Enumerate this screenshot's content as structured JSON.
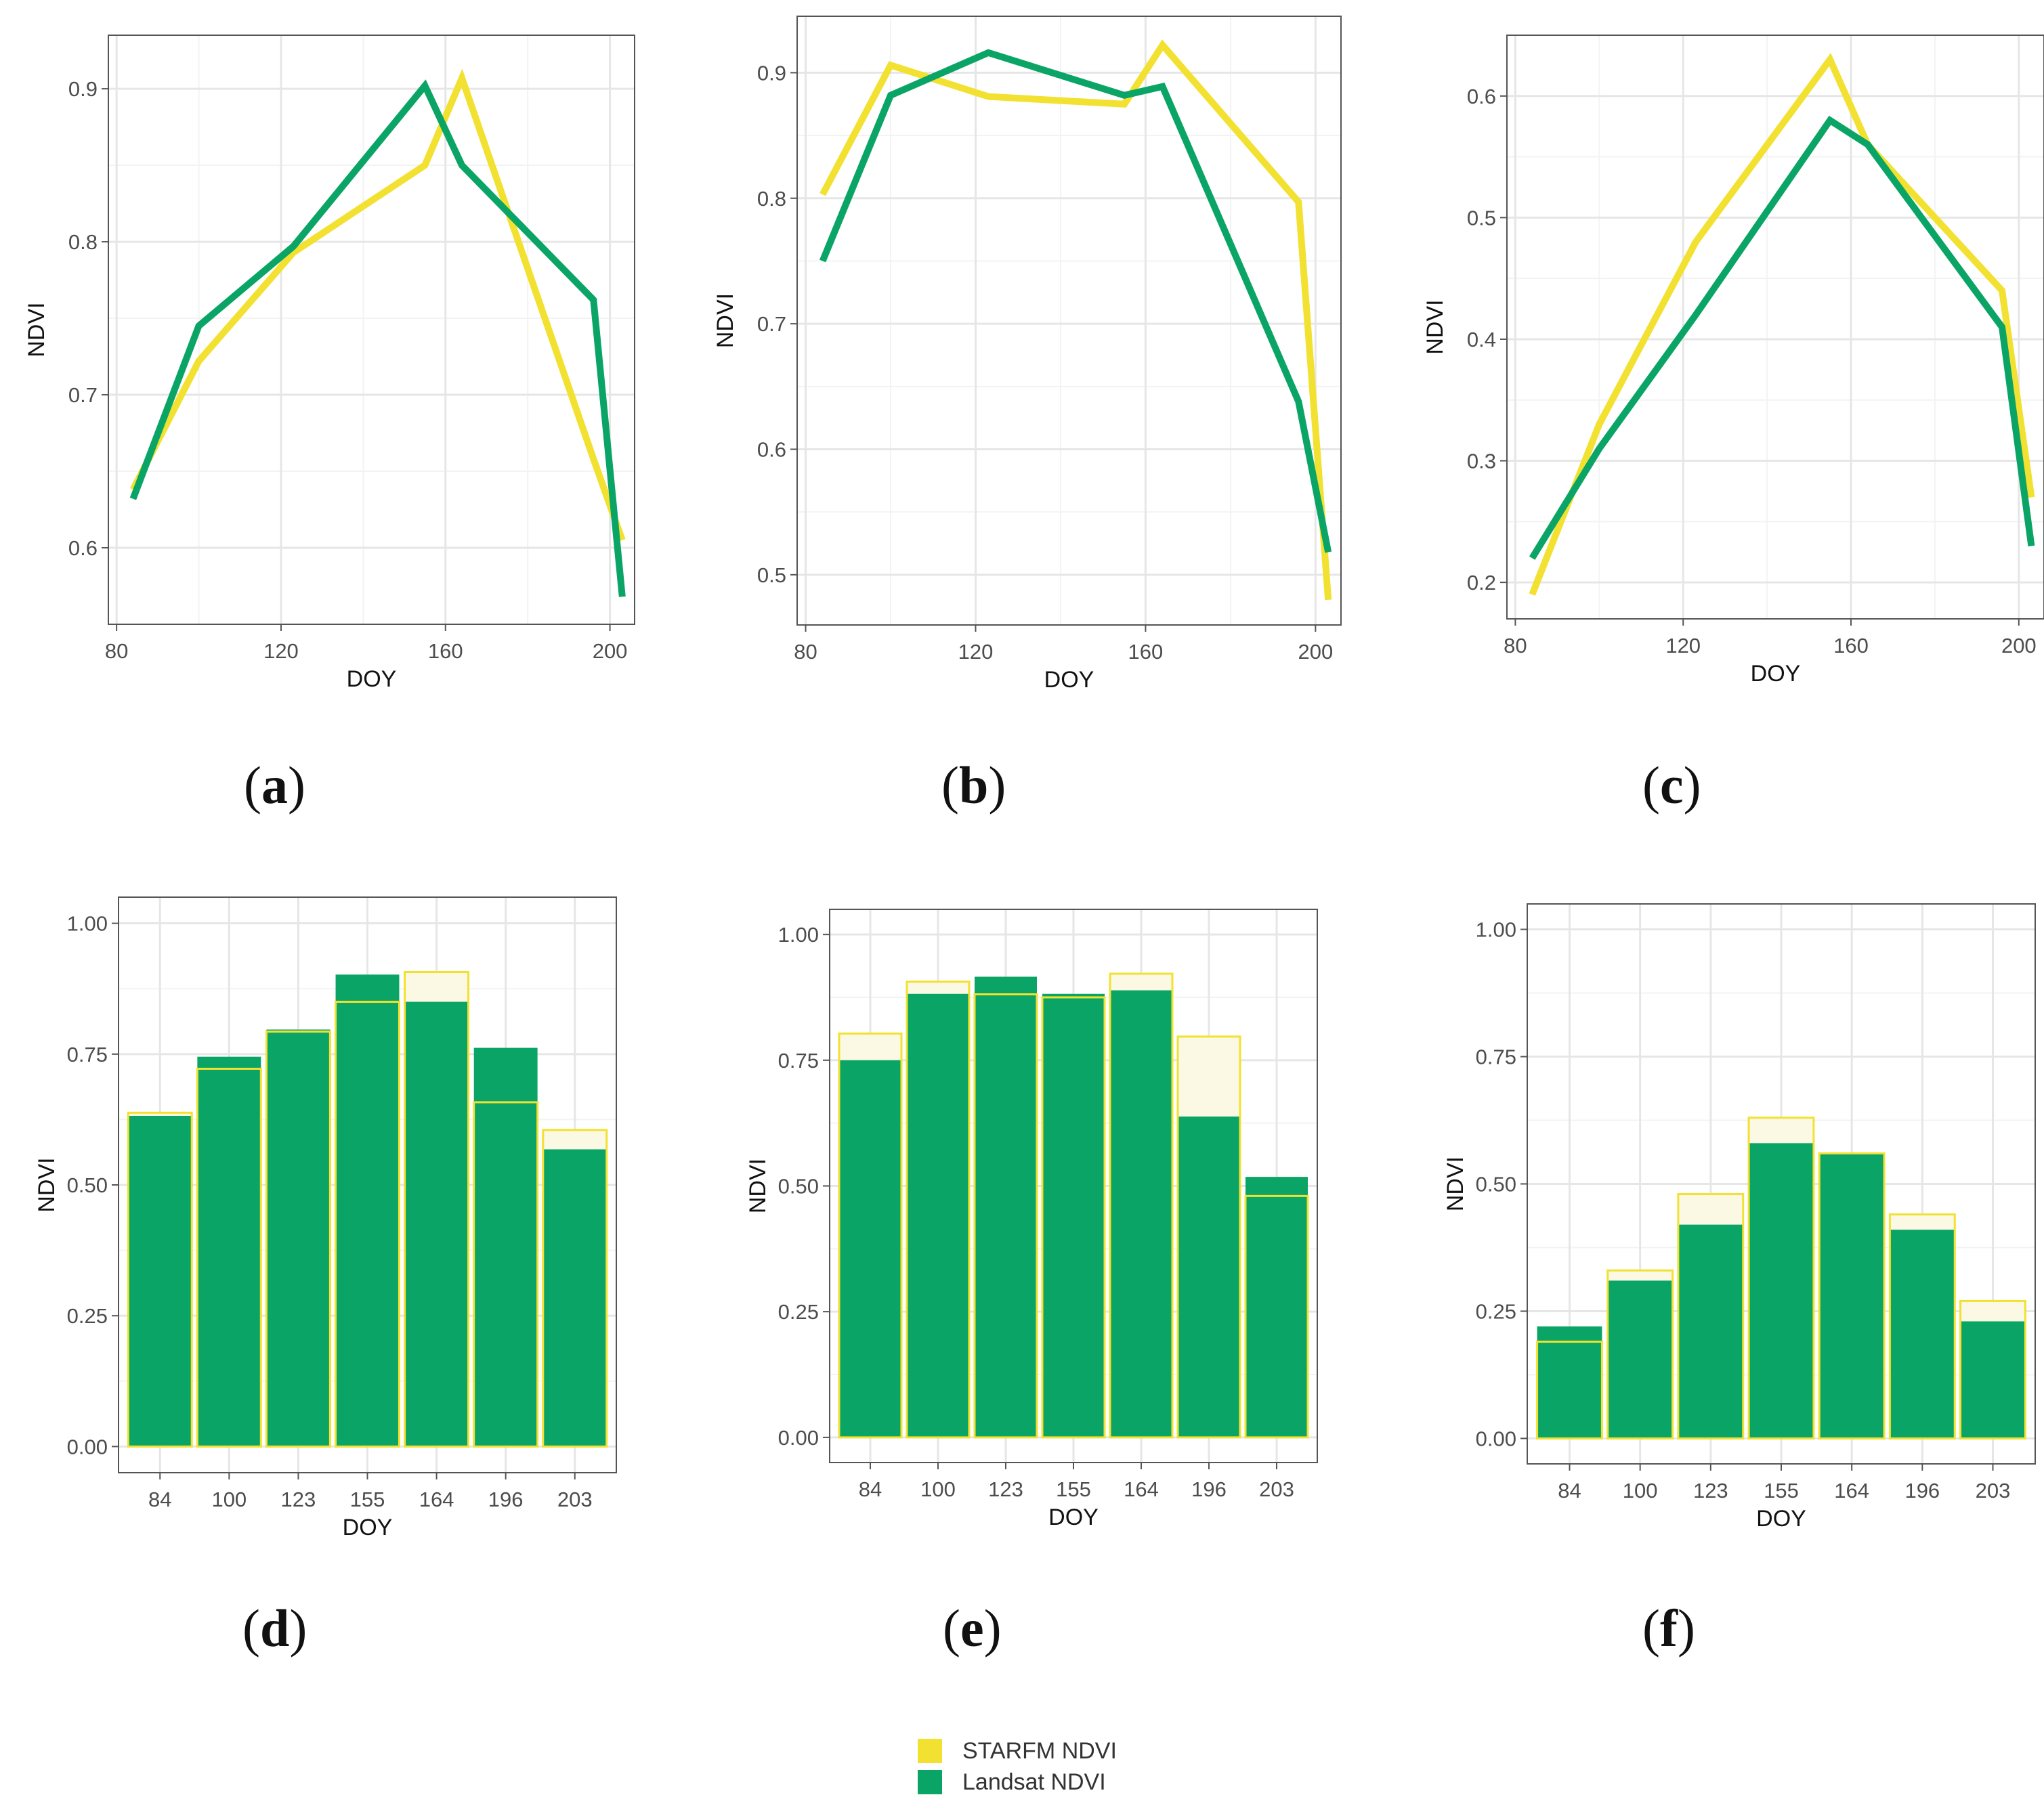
{
  "legend": {
    "starfm": {
      "label": "STARFM NDVI",
      "color": "#f2e130"
    },
    "landsat": {
      "label": "Landsat NDVI",
      "color": "#0aa566"
    }
  },
  "panel_labels": [
    {
      "text": "a"
    },
    {
      "text": "b"
    },
    {
      "text": "c"
    },
    {
      "text": "d"
    },
    {
      "text": "e"
    },
    {
      "text": "f"
    }
  ],
  "chart_data": [
    {
      "id": "a",
      "type": "line",
      "xlabel": "DOY",
      "ylabel": "NDVI",
      "xlim": [
        78,
        206
      ],
      "ylim": [
        0.55,
        0.935
      ],
      "xticks": [
        "80",
        "120",
        "160",
        "200"
      ],
      "xtick_values": [
        80,
        120,
        160,
        200
      ],
      "yticks": [
        "0.6",
        "0.7",
        "0.8",
        "0.9"
      ],
      "ytick_values": [
        0.6,
        0.7,
        0.8,
        0.9
      ],
      "series": [
        {
          "name": "Landsat NDVI",
          "x": [
            84,
            100,
            123,
            155,
            164,
            196,
            203
          ],
          "values": [
            0.632,
            0.745,
            0.797,
            0.902,
            0.85,
            0.762,
            0.568
          ]
        },
        {
          "name": "STARFM NDVI",
          "x": [
            84,
            100,
            123,
            155,
            164,
            196,
            203
          ],
          "values": [
            0.638,
            0.722,
            0.793,
            0.85,
            0.907,
            0.658,
            0.605
          ]
        }
      ]
    },
    {
      "id": "b",
      "type": "line",
      "xlabel": "DOY",
      "ylabel": "NDVI",
      "xlim": [
        78,
        206
      ],
      "ylim": [
        0.46,
        0.945
      ],
      "xticks": [
        "80",
        "120",
        "160",
        "200"
      ],
      "xtick_values": [
        80,
        120,
        160,
        200
      ],
      "yticks": [
        "0.5",
        "0.6",
        "0.7",
        "0.8",
        "0.9"
      ],
      "ytick_values": [
        0.5,
        0.6,
        0.7,
        0.8,
        0.9
      ],
      "series": [
        {
          "name": "Landsat NDVI",
          "x": [
            84,
            100,
            123,
            155,
            164,
            196,
            203
          ],
          "values": [
            0.75,
            0.882,
            0.916,
            0.882,
            0.889,
            0.638,
            0.518
          ]
        },
        {
          "name": "STARFM NDVI",
          "x": [
            84,
            100,
            123,
            155,
            164,
            196,
            203
          ],
          "values": [
            0.803,
            0.906,
            0.881,
            0.875,
            0.922,
            0.797,
            0.48
          ]
        }
      ]
    },
    {
      "id": "c",
      "type": "line",
      "xlabel": "DOY",
      "ylabel": "NDVI",
      "xlim": [
        78,
        206
      ],
      "ylim": [
        0.17,
        0.65
      ],
      "xticks": [
        "80",
        "120",
        "160",
        "200"
      ],
      "xtick_values": [
        80,
        120,
        160,
        200
      ],
      "yticks": [
        "0.2",
        "0.3",
        "0.4",
        "0.5",
        "0.6"
      ],
      "ytick_values": [
        0.2,
        0.3,
        0.4,
        0.5,
        0.6
      ],
      "series": [
        {
          "name": "Landsat NDVI",
          "x": [
            84,
            100,
            123,
            155,
            164,
            196,
            203
          ],
          "values": [
            0.22,
            0.31,
            0.42,
            0.58,
            0.56,
            0.41,
            0.23
          ]
        },
        {
          "name": "STARFM NDVI",
          "x": [
            84,
            100,
            123,
            155,
            164,
            196,
            203
          ],
          "values": [
            0.19,
            0.33,
            0.48,
            0.63,
            0.56,
            0.44,
            0.27
          ]
        }
      ]
    },
    {
      "id": "d",
      "type": "bar",
      "xlabel": "DOY",
      "ylabel": "NDVI",
      "categories": [
        "84",
        "100",
        "123",
        "155",
        "164",
        "196",
        "203"
      ],
      "ylim": [
        -0.05,
        1.05
      ],
      "yticks": [
        "0.00",
        "0.25",
        "0.50",
        "0.75",
        "1.00"
      ],
      "ytick_values": [
        0,
        0.25,
        0.5,
        0.75,
        1.0
      ],
      "series": [
        {
          "name": "Landsat NDVI",
          "values": [
            0.632,
            0.745,
            0.797,
            0.902,
            0.85,
            0.762,
            0.568
          ]
        },
        {
          "name": "STARFM NDVI",
          "values": [
            0.638,
            0.722,
            0.793,
            0.85,
            0.907,
            0.658,
            0.605
          ]
        }
      ]
    },
    {
      "id": "e",
      "type": "bar",
      "xlabel": "DOY",
      "ylabel": "NDVI",
      "categories": [
        "84",
        "100",
        "123",
        "155",
        "164",
        "196",
        "203"
      ],
      "ylim": [
        -0.05,
        1.05
      ],
      "yticks": [
        "0.00",
        "0.25",
        "0.50",
        "0.75",
        "1.00"
      ],
      "ytick_values": [
        0,
        0.25,
        0.5,
        0.75,
        1.0
      ],
      "series": [
        {
          "name": "Landsat NDVI",
          "values": [
            0.75,
            0.882,
            0.916,
            0.882,
            0.889,
            0.638,
            0.518
          ]
        },
        {
          "name": "STARFM NDVI",
          "values": [
            0.803,
            0.906,
            0.881,
            0.875,
            0.922,
            0.797,
            0.48
          ]
        }
      ]
    },
    {
      "id": "f",
      "type": "bar",
      "xlabel": "DOY",
      "ylabel": "NDVI",
      "categories": [
        "84",
        "100",
        "123",
        "155",
        "164",
        "196",
        "203"
      ],
      "ylim": [
        -0.05,
        1.05
      ],
      "yticks": [
        "0.00",
        "0.25",
        "0.50",
        "0.75",
        "1.00"
      ],
      "ytick_values": [
        0,
        0.25,
        0.5,
        0.75,
        1.0
      ],
      "series": [
        {
          "name": "Landsat NDVI",
          "values": [
            0.22,
            0.31,
            0.42,
            0.58,
            0.56,
            0.41,
            0.23
          ]
        },
        {
          "name": "STARFM NDVI",
          "values": [
            0.19,
            0.33,
            0.48,
            0.63,
            0.56,
            0.44,
            0.27
          ]
        }
      ]
    }
  ]
}
